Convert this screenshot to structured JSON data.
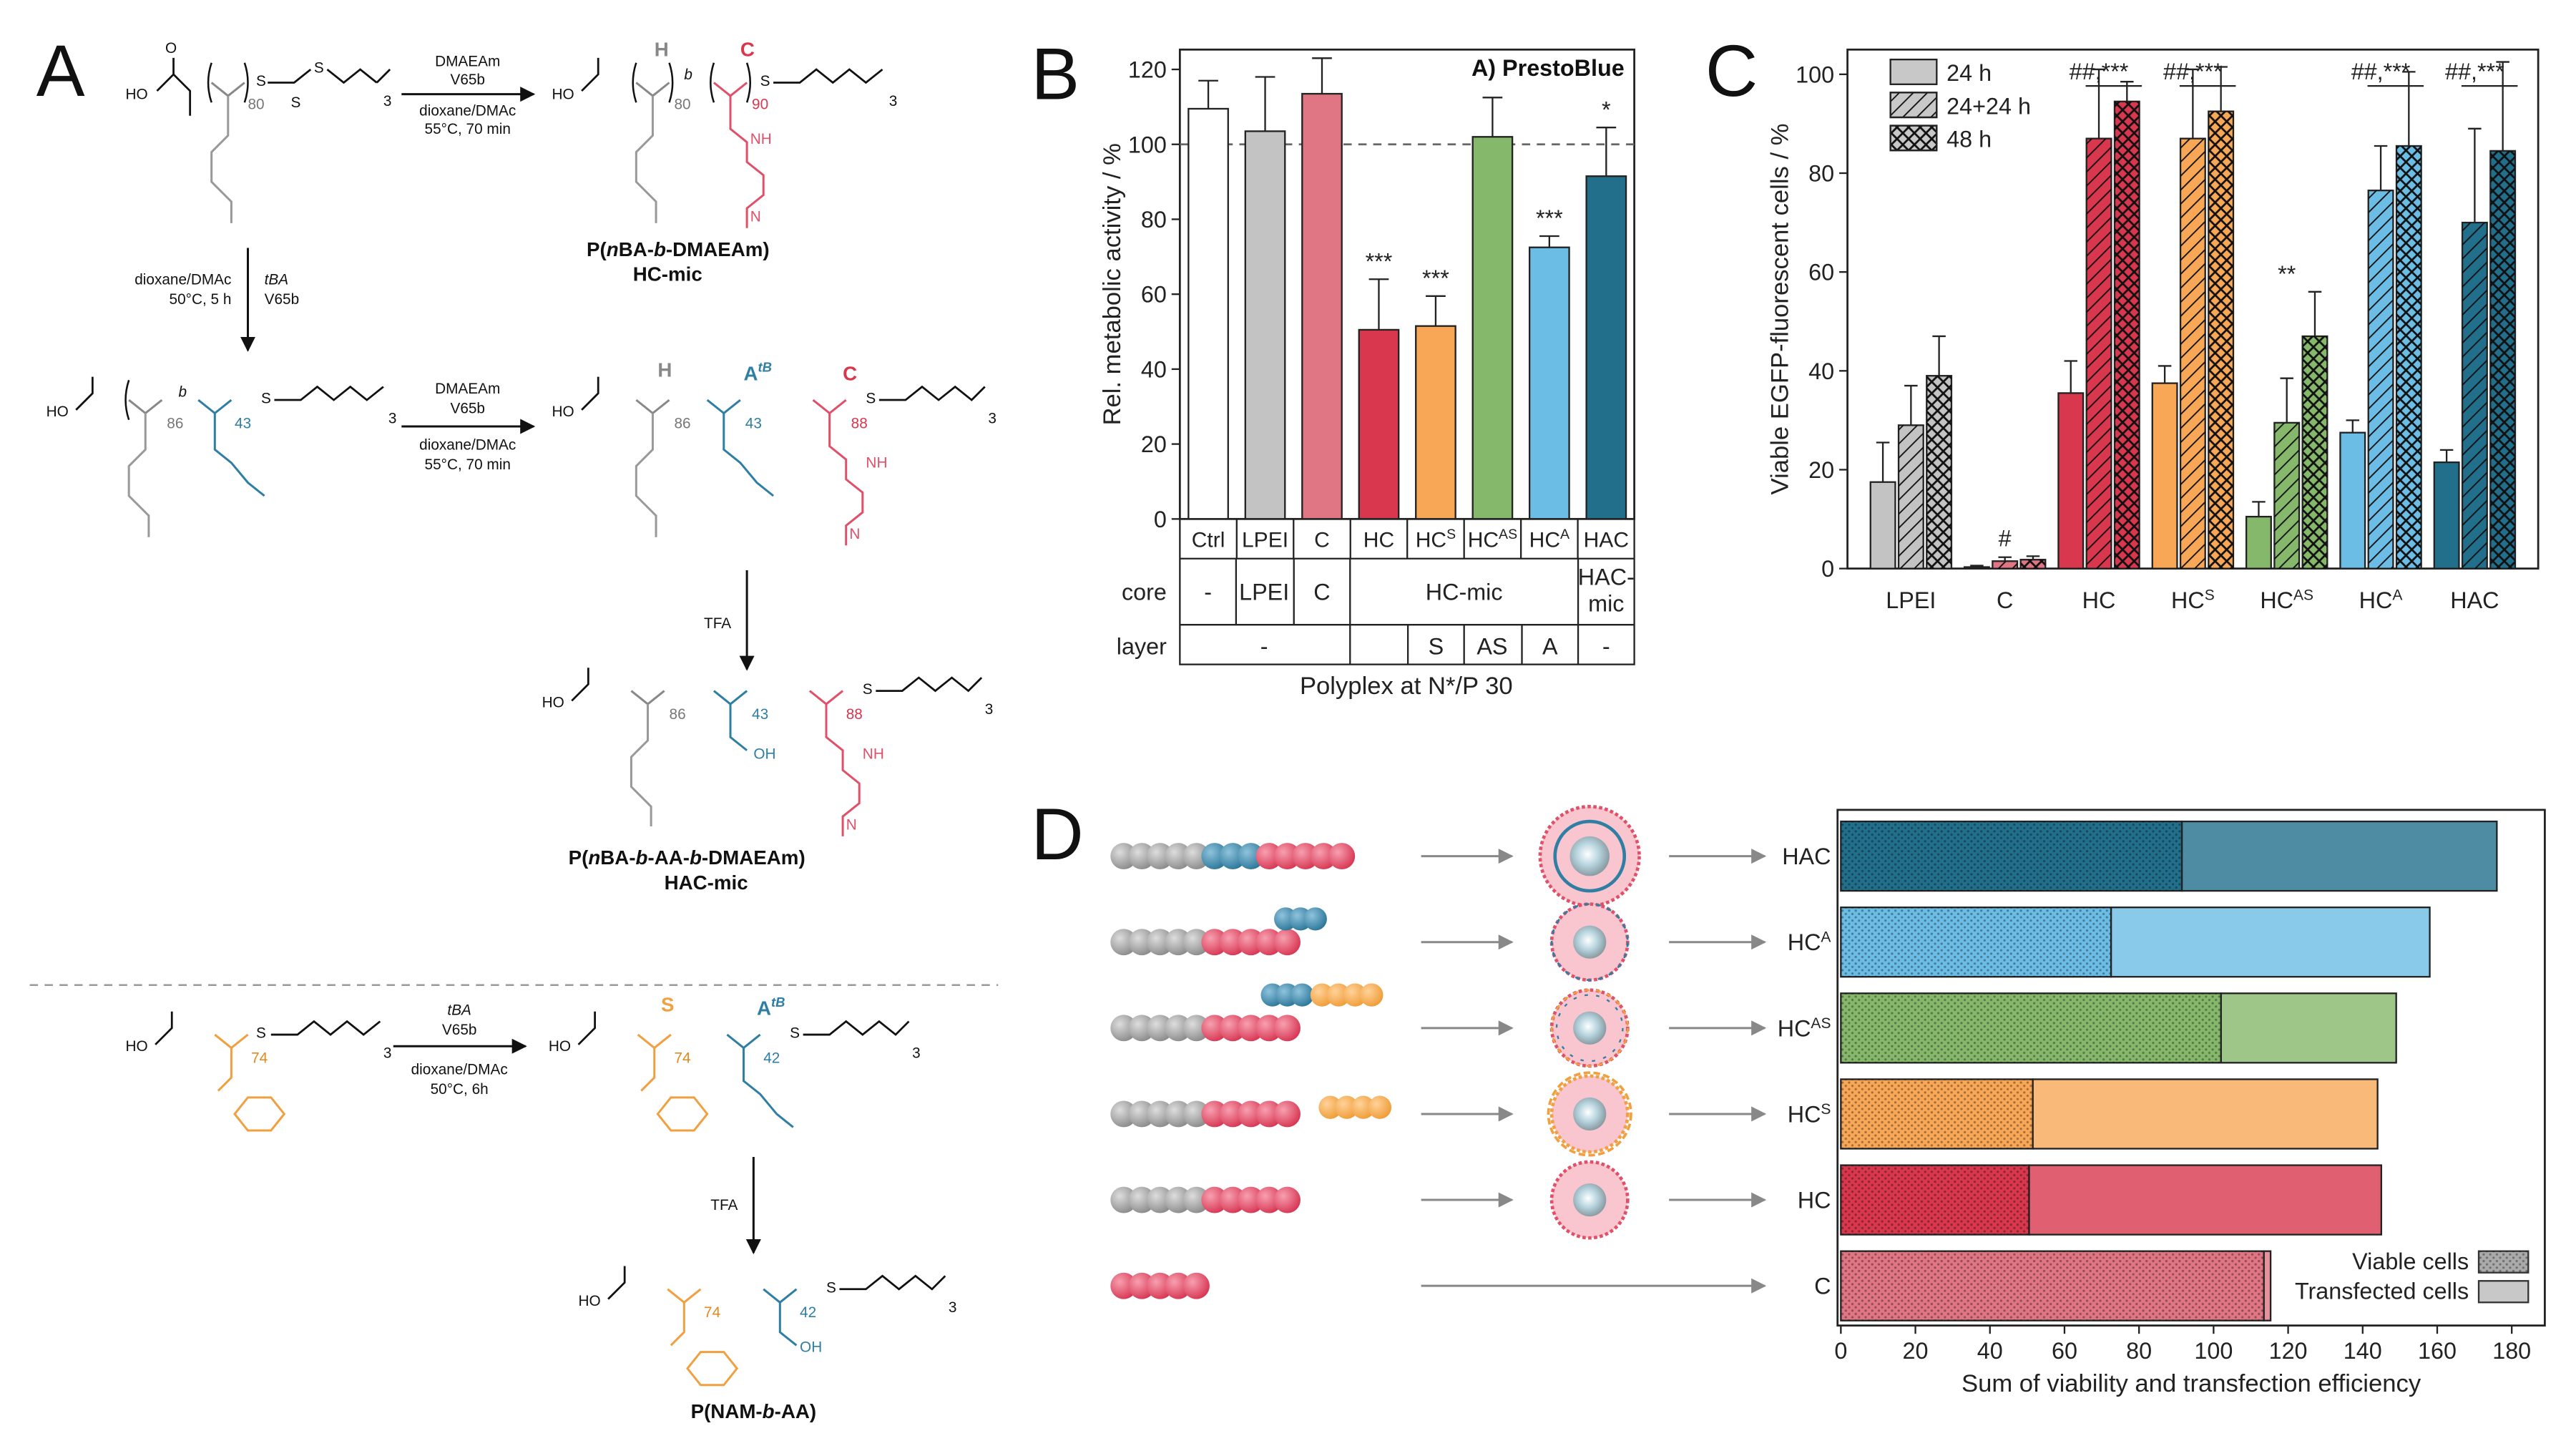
{
  "colors": {
    "ctrl": "#ffffff",
    "lpei": "#c3c3c3",
    "c": "#e07583",
    "hc": "#d8374d",
    "hcs": "#f8a757",
    "hcas": "#86b86b",
    "hca": "#6cbde5",
    "hac": "#226f8c",
    "grey_chain": "#999999",
    "red_chain": "#e05068",
    "blue_chain": "#2f7ea3",
    "orange_chain": "#f0a040"
  },
  "panelA": {
    "label": "A",
    "rxn1_reagents": "DMAEAm",
    "rxn1_initiator": "V65b",
    "rxn1_solvent": "dioxane/DMAc",
    "rxn1_conditions": "55°C, 70 min",
    "sm1_n": "80",
    "p1_h": "H",
    "p1_c": "C",
    "p1_n1": "80",
    "p1_n2": "90",
    "p1_name": "P(nBA-b-DMAEAm)",
    "p1_name_a": "P(",
    "p1_name_b": "n",
    "p1_name_c": "BA-",
    "p1_name_d": "b",
    "p1_name_e": "-DMAEAm)",
    "p1_mic": "HC-mic",
    "rxn2_solvent": "dioxane/DMAc",
    "rxn2_conditions": "50°C, 5 h",
    "rxn2_monomer": "tBA",
    "rxn2_initiator": "V65b",
    "int_n1": "86",
    "int_n2": "43",
    "rxn3_reagents": "DMAEAm",
    "rxn3_initiator": "V65b",
    "rxn3_solvent": "dioxane/DMAc",
    "rxn3_conditions": "55°C, 70 min",
    "p2_h": "H",
    "p2_a": "A",
    "p2_a_sup": "tB",
    "p2_c": "C",
    "p2_n1": "86",
    "p2_n2": "43",
    "p2_n3": "88",
    "tfa1": "TFA",
    "p3_n1": "86",
    "p3_n2": "43",
    "p3_n3": "88",
    "p3_name_a": "P(",
    "p3_name_b": "n",
    "p3_name_c": "BA-",
    "p3_name_d": "b",
    "p3_name_e": "-AA-",
    "p3_name_f": "b",
    "p3_name_g": "-DMAEAm)",
    "p3_mic": "HAC-mic",
    "sm2_n": "74",
    "rxn4_monomer": "tBA",
    "rxn4_initiator": "V65b",
    "rxn4_solvent": "dioxane/DMAc",
    "rxn4_conditions": "50°C, 6h",
    "p4_s": "S",
    "p4_a": "A",
    "p4_a_sup": "tB",
    "p4_n1": "74",
    "p4_n2": "42",
    "tfa2": "TFA",
    "p5_n1": "74",
    "p5_n2": "42",
    "p5_name_a": "P(NAM-",
    "p5_name_b": "b",
    "p5_name_c": "-AA)",
    "atoms": {
      "ho": "HO",
      "o": "O",
      "s": "S",
      "n": "N",
      "nh": "NH",
      "oh": "OH",
      "b": "b",
      "three": "3"
    }
  },
  "panelB": {
    "label": "B",
    "chart_data": {
      "type": "bar",
      "title": "A) PrestoBlue",
      "ylabel": "Rel. metabolic activity / %",
      "xlabel": "Polyplex at N*/P 30",
      "ylim": [
        0,
        120
      ],
      "yticks": [
        "0",
        "20",
        "40",
        "60",
        "80",
        "100",
        "120"
      ],
      "reference_line": 100,
      "categories": [
        "Ctrl",
        "LPEI",
        "C",
        "HC",
        "HC^S",
        "HC^AS",
        "HC^A",
        "HAC"
      ],
      "values": [
        109.5,
        103.5,
        113.5,
        50.5,
        51.5,
        102,
        72.5,
        91.5
      ],
      "errors": [
        7.5,
        14.5,
        9.5,
        13.5,
        8,
        10.5,
        3,
        13
      ],
      "significance": [
        "",
        "",
        "",
        "***",
        "***",
        "",
        "***",
        "*"
      ]
    },
    "cat_labels": [
      {
        "base": "Ctrl",
        "sup": ""
      },
      {
        "base": "LPEI",
        "sup": ""
      },
      {
        "base": "C",
        "sup": ""
      },
      {
        "base": "HC",
        "sup": ""
      },
      {
        "base": "HC",
        "sup": "S"
      },
      {
        "base": "HC",
        "sup": "AS"
      },
      {
        "base": "HC",
        "sup": "A"
      },
      {
        "base": "HAC",
        "sup": ""
      }
    ],
    "row_core": "core",
    "row_layer": "layer",
    "core_ctrl": "-",
    "core_lpei": "LPEI",
    "core_c": "C",
    "core_hcmic": "HC-mic",
    "core_hac_1": "HAC-",
    "core_hac_2": "mic",
    "layer_none": "-",
    "layer_s": "S",
    "layer_as": "AS",
    "layer_a": "A",
    "layer_hac": "-"
  },
  "panelC": {
    "label": "C",
    "chart_data": {
      "type": "bar",
      "ylabel": "Viable EGFP-fluorescent cells / %",
      "ylim": [
        0,
        105
      ],
      "yticks": [
        "0",
        "20",
        "40",
        "60",
        "80",
        "100"
      ],
      "categories": [
        "LPEI",
        "C",
        "HC",
        "HC^S",
        "HC^AS",
        "HC^A",
        "HAC"
      ],
      "series": [
        {
          "name": "24 h",
          "pattern": "solid",
          "values": [
            17.5,
            0.3,
            35.5,
            37.5,
            10.5,
            27.5,
            21.5
          ],
          "errors": [
            8,
            0.3,
            6.5,
            3.5,
            3,
            2.5,
            2.5
          ]
        },
        {
          "name": "24+24 h",
          "pattern": "hatch",
          "values": [
            29,
            1.5,
            87,
            87,
            29.5,
            76.5,
            70
          ],
          "errors": [
            8,
            0.8,
            14,
            14,
            9,
            9,
            19
          ]
        },
        {
          "name": "48 h",
          "pattern": "crosshatch",
          "values": [
            39,
            1.8,
            94.5,
            92.5,
            47,
            85.5,
            84.5
          ],
          "errors": [
            8,
            0.7,
            4,
            9,
            9,
            15,
            18
          ]
        }
      ],
      "annotations": [
        "",
        "#",
        "##,***",
        "##,***",
        "**",
        "##,***",
        "##,***"
      ]
    },
    "cat_labels": [
      {
        "base": "LPEI",
        "sup": ""
      },
      {
        "base": "C",
        "sup": ""
      },
      {
        "base": "HC",
        "sup": ""
      },
      {
        "base": "HC",
        "sup": "S"
      },
      {
        "base": "HC",
        "sup": "AS"
      },
      {
        "base": "HC",
        "sup": "A"
      },
      {
        "base": "HAC",
        "sup": ""
      }
    ]
  },
  "panelD": {
    "label": "D",
    "chart_data": {
      "type": "bar",
      "orientation": "horizontal",
      "stacked": true,
      "xlabel": "Sum of viability and transfection efficiency",
      "xlim": [
        0,
        180
      ],
      "xticks": [
        "0",
        "20",
        "40",
        "60",
        "80",
        "100",
        "120",
        "140",
        "160",
        "180"
      ],
      "categories": [
        "HAC",
        "HC^A",
        "HC^AS",
        "HC^S",
        "HC",
        "C"
      ],
      "series": [
        {
          "name": "Viable cells",
          "values": [
            91.5,
            72.5,
            102,
            51.5,
            50.5,
            113.5
          ]
        },
        {
          "name": "Transfected cells",
          "values": [
            84.5,
            85.5,
            47,
            92.5,
            94.5,
            1.8
          ]
        }
      ]
    },
    "row_labels": [
      {
        "base": "HAC",
        "sup": ""
      },
      {
        "base": "HC",
        "sup": "A"
      },
      {
        "base": "HC",
        "sup": "AS"
      },
      {
        "base": "HC",
        "sup": "S"
      },
      {
        "base": "HC",
        "sup": ""
      },
      {
        "base": "C",
        "sup": ""
      }
    ],
    "legend": {
      "viable": "Viable cells",
      "transfected": "Transfected cells"
    }
  }
}
